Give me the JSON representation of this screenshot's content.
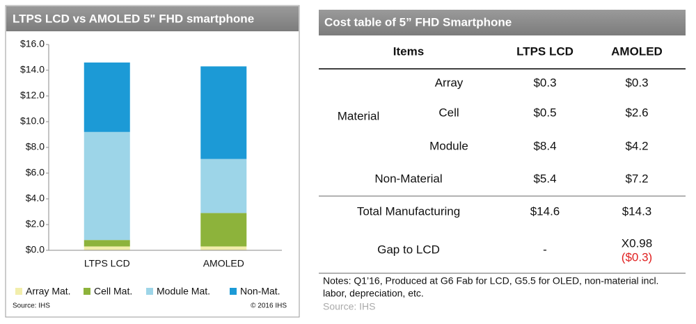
{
  "chart_data": {
    "type": "stacked_bar",
    "title": "LTPS LCD vs AMOLED 5\" FHD smartphone",
    "categories": [
      "LTPS LCD",
      "AMOLED"
    ],
    "series": [
      {
        "name": "Array Mat.",
        "color": "#f2eeab",
        "values": [
          0.3,
          0.3
        ]
      },
      {
        "name": "Cell Mat.",
        "color": "#8db33b",
        "values": [
          0.5,
          2.6
        ]
      },
      {
        "name": "Module Mat.",
        "color": "#9dd5e8",
        "values": [
          8.4,
          4.2
        ]
      },
      {
        "name": "Non-Mat.",
        "color": "#1c9ad6",
        "values": [
          5.4,
          7.2
        ]
      }
    ],
    "ylim": [
      0,
      16
    ],
    "yticks": [
      {
        "value": 0,
        "label": "$0.0"
      },
      {
        "value": 2,
        "label": "$2.0"
      },
      {
        "value": 4,
        "label": "$4.0"
      },
      {
        "value": 6,
        "label": "$6.0"
      },
      {
        "value": 8,
        "label": "$8.0"
      },
      {
        "value": 10,
        "label": "$10.0"
      },
      {
        "value": 12,
        "label": "$12.0"
      },
      {
        "value": 14,
        "label": "$14.0"
      },
      {
        "value": 16,
        "label": "$16.0"
      }
    ],
    "source": "Source: IHS",
    "copyright": "© 2016 IHS"
  },
  "table": {
    "title": "Cost table of 5” FHD Smartphone",
    "header": [
      "Items",
      "LTPS LCD",
      "AMOLED"
    ],
    "group": "Material",
    "rows": [
      {
        "item": "Array",
        "lcd": "$0.3",
        "amoled": "$0.3"
      },
      {
        "item": "Cell",
        "lcd": "$0.5",
        "amoled": "$2.6"
      },
      {
        "item": "Module",
        "lcd": "$8.4",
        "amoled": "$4.2"
      },
      {
        "item": "Non-Material",
        "lcd": "$5.4",
        "amoled": "$7.2"
      },
      {
        "item": "Total Manufacturing",
        "lcd": "$14.6",
        "amoled": "$14.3"
      }
    ],
    "gap": {
      "item": "Gap to LCD",
      "lcd": "-",
      "amoled_ratio": "X0.98",
      "amoled_diff": "($0.3)"
    },
    "notes": [
      "Notes: Q1’16, Produced at G6 Fab for LCD, G5.5 for OLED, non-material incl.",
      "labor, depreciation, etc."
    ],
    "source": "Source: IHS"
  }
}
